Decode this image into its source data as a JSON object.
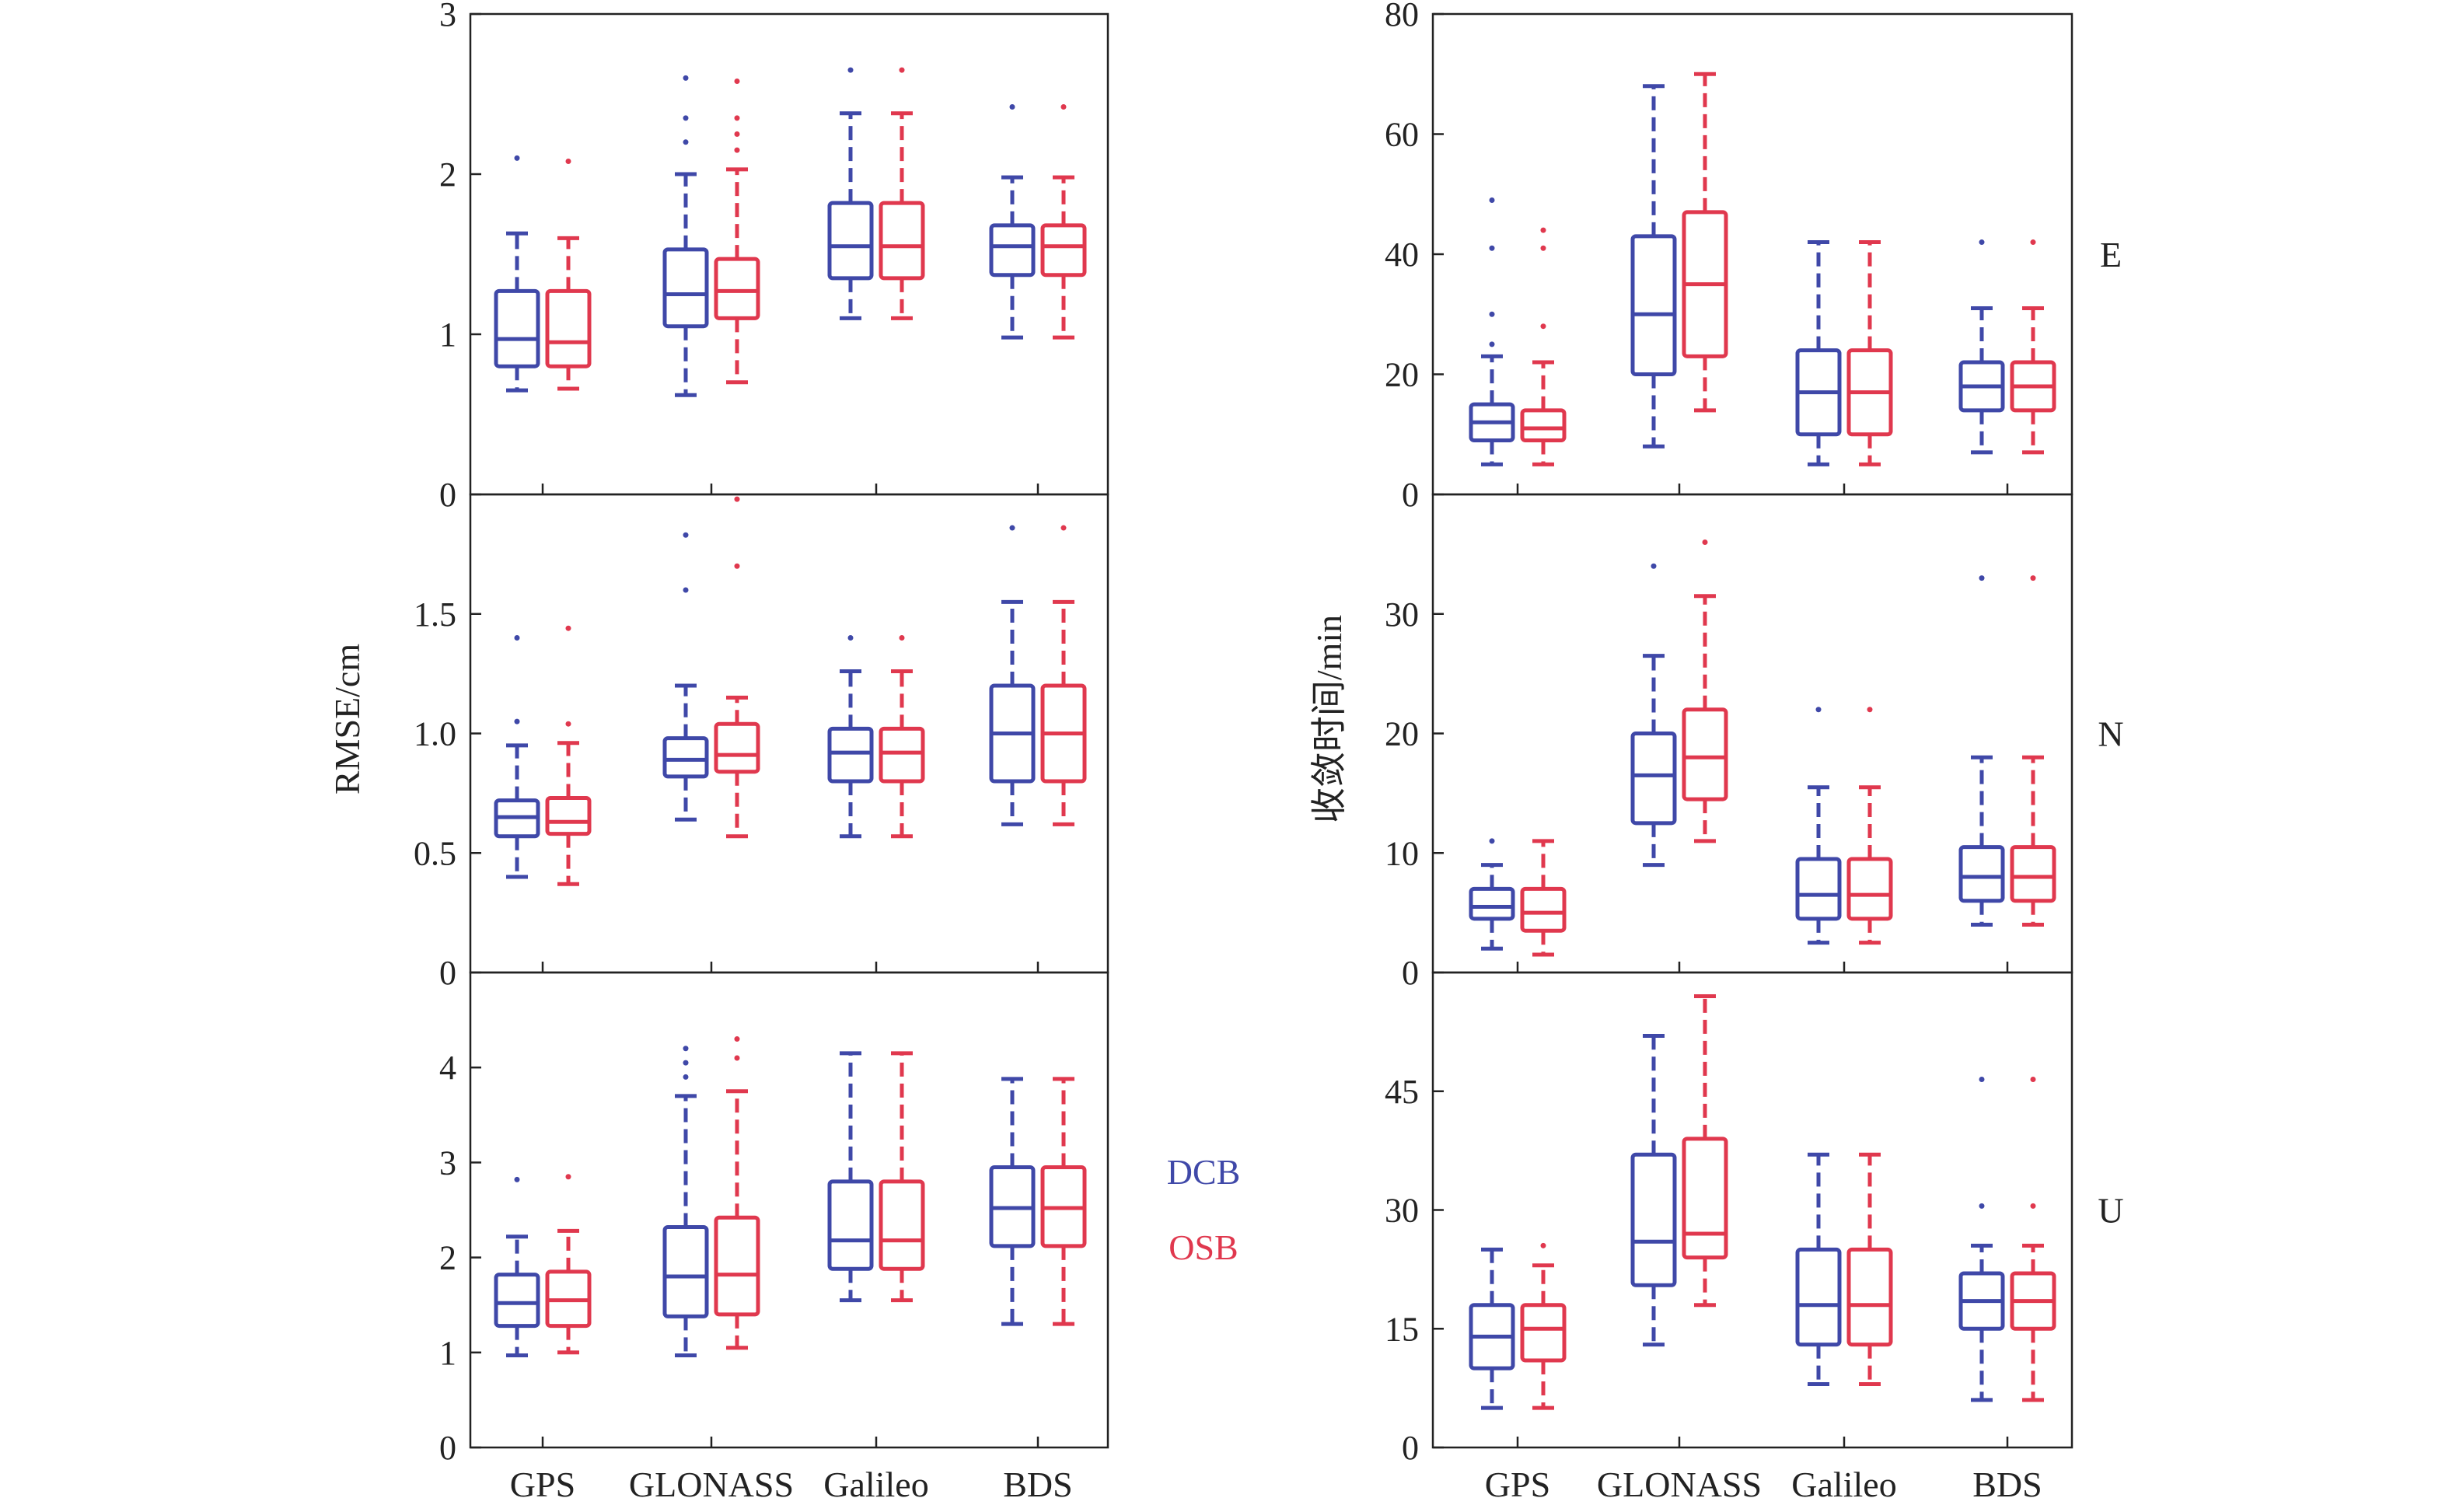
{
  "figure": {
    "legend": [
      {
        "label": "DCB",
        "color": "#3f48a8"
      },
      {
        "label": "OSB",
        "color": "#e0384e"
      }
    ]
  },
  "chart_data": [
    {
      "type": "box",
      "column": "left",
      "row": 1,
      "ylabel": "RMSE/cm",
      "ylim": [
        0,
        3
      ],
      "yticks": [
        0,
        1,
        2,
        3
      ],
      "ytick_labels": [
        "0",
        "1",
        "2",
        "3"
      ],
      "categories": [
        "GPS",
        "GLONASS",
        "Galileo",
        "BDS"
      ],
      "series": [
        {
          "name": "DCB",
          "boxes": [
            {
              "whislo": 0.65,
              "q1": 0.8,
              "med": 0.97,
              "q3": 1.27,
              "whishi": 1.63,
              "fliers": [
                2.1
              ]
            },
            {
              "whislo": 0.62,
              "q1": 1.05,
              "med": 1.25,
              "q3": 1.53,
              "whishi": 2.0,
              "fliers": [
                2.2,
                2.35,
                2.6
              ]
            },
            {
              "whislo": 1.1,
              "q1": 1.35,
              "med": 1.55,
              "q3": 1.82,
              "whishi": 2.38,
              "fliers": [
                2.65
              ]
            },
            {
              "whislo": 0.98,
              "q1": 1.37,
              "med": 1.55,
              "q3": 1.68,
              "whishi": 1.98,
              "fliers": [
                2.42
              ]
            }
          ]
        },
        {
          "name": "OSB",
          "boxes": [
            {
              "whislo": 0.66,
              "q1": 0.8,
              "med": 0.95,
              "q3": 1.27,
              "whishi": 1.6,
              "fliers": [
                2.08
              ]
            },
            {
              "whislo": 0.7,
              "q1": 1.1,
              "med": 1.27,
              "q3": 1.47,
              "whishi": 2.03,
              "fliers": [
                2.15,
                2.25,
                2.35,
                2.58
              ]
            },
            {
              "whislo": 1.1,
              "q1": 1.35,
              "med": 1.55,
              "q3": 1.82,
              "whishi": 2.38,
              "fliers": [
                2.65
              ]
            },
            {
              "whislo": 0.98,
              "q1": 1.37,
              "med": 1.55,
              "q3": 1.68,
              "whishi": 1.98,
              "fliers": [
                2.42
              ]
            }
          ]
        }
      ]
    },
    {
      "type": "box",
      "column": "left",
      "row": 2,
      "ylabel": "RMSE/cm",
      "ylim": [
        0,
        2
      ],
      "yticks": [
        0,
        0.5,
        1.0,
        1.5
      ],
      "ytick_labels": [
        "0",
        "0.5",
        "1.0",
        "1.5"
      ],
      "categories": [
        "GPS",
        "GLONASS",
        "Galileo",
        "BDS"
      ],
      "series": [
        {
          "name": "DCB",
          "boxes": [
            {
              "whislo": 0.4,
              "q1": 0.57,
              "med": 0.65,
              "q3": 0.72,
              "whishi": 0.95,
              "fliers": [
                1.05,
                1.4
              ]
            },
            {
              "whislo": 0.64,
              "q1": 0.82,
              "med": 0.89,
              "q3": 0.98,
              "whishi": 1.2,
              "fliers": [
                1.6,
                1.83
              ]
            },
            {
              "whislo": 0.57,
              "q1": 0.8,
              "med": 0.92,
              "q3": 1.02,
              "whishi": 1.26,
              "fliers": [
                1.4
              ]
            },
            {
              "whislo": 0.62,
              "q1": 0.8,
              "med": 1.0,
              "q3": 1.2,
              "whishi": 1.55,
              "fliers": [
                1.86
              ]
            }
          ]
        },
        {
          "name": "OSB",
          "boxes": [
            {
              "whislo": 0.37,
              "q1": 0.58,
              "med": 0.63,
              "q3": 0.73,
              "whishi": 0.96,
              "fliers": [
                1.04,
                1.44
              ]
            },
            {
              "whislo": 0.57,
              "q1": 0.84,
              "med": 0.91,
              "q3": 1.04,
              "whishi": 1.15,
              "fliers": [
                1.7,
                1.98
              ]
            },
            {
              "whislo": 0.57,
              "q1": 0.8,
              "med": 0.92,
              "q3": 1.02,
              "whishi": 1.26,
              "fliers": [
                1.4
              ]
            },
            {
              "whislo": 0.62,
              "q1": 0.8,
              "med": 1.0,
              "q3": 1.2,
              "whishi": 1.55,
              "fliers": [
                1.86
              ]
            }
          ]
        }
      ]
    },
    {
      "type": "box",
      "column": "left",
      "row": 3,
      "ylabel": "RMSE/cm",
      "ylim": [
        0,
        5
      ],
      "yticks": [
        0,
        1,
        2,
        3,
        4
      ],
      "ytick_labels": [
        "0",
        "1",
        "2",
        "3",
        "4"
      ],
      "categories": [
        "GPS",
        "GLONASS",
        "Galileo",
        "BDS"
      ],
      "series": [
        {
          "name": "DCB",
          "boxes": [
            {
              "whislo": 0.97,
              "q1": 1.28,
              "med": 1.52,
              "q3": 1.82,
              "whishi": 2.22,
              "fliers": [
                2.82
              ]
            },
            {
              "whislo": 0.97,
              "q1": 1.38,
              "med": 1.8,
              "q3": 2.32,
              "whishi": 3.7,
              "fliers": [
                3.9,
                4.05,
                4.2
              ]
            },
            {
              "whislo": 1.55,
              "q1": 1.88,
              "med": 2.18,
              "q3": 2.8,
              "whishi": 4.15,
              "fliers": []
            },
            {
              "whislo": 1.3,
              "q1": 2.12,
              "med": 2.52,
              "q3": 2.95,
              "whishi": 3.88,
              "fliers": []
            }
          ]
        },
        {
          "name": "OSB",
          "boxes": [
            {
              "whislo": 1.0,
              "q1": 1.28,
              "med": 1.55,
              "q3": 1.85,
              "whishi": 2.28,
              "fliers": [
                2.85
              ]
            },
            {
              "whislo": 1.05,
              "q1": 1.4,
              "med": 1.82,
              "q3": 2.42,
              "whishi": 3.75,
              "fliers": [
                4.1,
                4.3
              ]
            },
            {
              "whislo": 1.55,
              "q1": 1.88,
              "med": 2.18,
              "q3": 2.8,
              "whishi": 4.15,
              "fliers": []
            },
            {
              "whislo": 1.3,
              "q1": 2.12,
              "med": 2.52,
              "q3": 2.95,
              "whishi": 3.88,
              "fliers": []
            }
          ]
        }
      ]
    },
    {
      "type": "box",
      "column": "right",
      "row": 1,
      "label": "E",
      "ylabel": "收敛时间/min",
      "ylim": [
        0,
        80
      ],
      "yticks": [
        0,
        20,
        40,
        60,
        80
      ],
      "ytick_labels": [
        "0",
        "20",
        "40",
        "60",
        "80"
      ],
      "categories": [
        "GPS",
        "GLONASS",
        "Galileo",
        "BDS"
      ],
      "series": [
        {
          "name": "DCB",
          "boxes": [
            {
              "whislo": 5,
              "q1": 9,
              "med": 12,
              "q3": 15,
              "whishi": 23,
              "fliers": [
                25,
                30,
                41,
                49
              ]
            },
            {
              "whislo": 8,
              "q1": 20,
              "med": 30,
              "q3": 43,
              "whishi": 68,
              "fliers": []
            },
            {
              "whislo": 5,
              "q1": 10,
              "med": 17,
              "q3": 24,
              "whishi": 42,
              "fliers": []
            },
            {
              "whislo": 7,
              "q1": 14,
              "med": 18,
              "q3": 22,
              "whishi": 31,
              "fliers": [
                42
              ]
            }
          ]
        },
        {
          "name": "OSB",
          "boxes": [
            {
              "whislo": 5,
              "q1": 9,
              "med": 11,
              "q3": 14,
              "whishi": 22,
              "fliers": [
                28,
                41,
                44
              ]
            },
            {
              "whislo": 14,
              "q1": 23,
              "med": 35,
              "q3": 47,
              "whishi": 70,
              "fliers": []
            },
            {
              "whislo": 5,
              "q1": 10,
              "med": 17,
              "q3": 24,
              "whishi": 42,
              "fliers": []
            },
            {
              "whislo": 7,
              "q1": 14,
              "med": 18,
              "q3": 22,
              "whishi": 31,
              "fliers": [
                42
              ]
            }
          ]
        }
      ]
    },
    {
      "type": "box",
      "column": "right",
      "row": 2,
      "label": "N",
      "ylabel": "收敛时间/min",
      "ylim": [
        0,
        40
      ],
      "yticks": [
        0,
        10,
        20,
        30
      ],
      "ytick_labels": [
        "0",
        "10",
        "20",
        "30"
      ],
      "categories": [
        "GPS",
        "GLONASS",
        "Galileo",
        "BDS"
      ],
      "series": [
        {
          "name": "DCB",
          "boxes": [
            {
              "whislo": 2,
              "q1": 4.5,
              "med": 5.5,
              "q3": 7,
              "whishi": 9,
              "fliers": [
                11
              ]
            },
            {
              "whislo": 9,
              "q1": 12.5,
              "med": 16.5,
              "q3": 20,
              "whishi": 26.5,
              "fliers": [
                34
              ]
            },
            {
              "whislo": 2.5,
              "q1": 4.5,
              "med": 6.5,
              "q3": 9.5,
              "whishi": 15.5,
              "fliers": [
                22
              ]
            },
            {
              "whislo": 4,
              "q1": 6,
              "med": 8,
              "q3": 10.5,
              "whishi": 18,
              "fliers": [
                33
              ]
            }
          ]
        },
        {
          "name": "OSB",
          "boxes": [
            {
              "whislo": 1.5,
              "q1": 3.5,
              "med": 5,
              "q3": 7,
              "whishi": 11,
              "fliers": []
            },
            {
              "whislo": 11,
              "q1": 14.5,
              "med": 18,
              "q3": 22,
              "whishi": 31.5,
              "fliers": [
                36
              ]
            },
            {
              "whislo": 2.5,
              "q1": 4.5,
              "med": 6.5,
              "q3": 9.5,
              "whishi": 15.5,
              "fliers": [
                22
              ]
            },
            {
              "whislo": 4,
              "q1": 6,
              "med": 8,
              "q3": 10.5,
              "whishi": 18,
              "fliers": [
                33
              ]
            }
          ]
        }
      ]
    },
    {
      "type": "box",
      "column": "right",
      "row": 3,
      "label": "U",
      "ylabel": "收敛时间/min",
      "ylim": [
        0,
        60
      ],
      "yticks": [
        0,
        15,
        30,
        45
      ],
      "ytick_labels": [
        "0",
        "15",
        "30",
        "45"
      ],
      "categories": [
        "GPS",
        "GLONASS",
        "Galileo",
        "BDS"
      ],
      "series": [
        {
          "name": "DCB",
          "boxes": [
            {
              "whislo": 5,
              "q1": 10,
              "med": 14,
              "q3": 18,
              "whishi": 25,
              "fliers": []
            },
            {
              "whislo": 13,
              "q1": 20.5,
              "med": 26,
              "q3": 37,
              "whishi": 52,
              "fliers": []
            },
            {
              "whislo": 8,
              "q1": 13,
              "med": 18,
              "q3": 25,
              "whishi": 37,
              "fliers": []
            },
            {
              "whislo": 6,
              "q1": 15,
              "med": 18.5,
              "q3": 22,
              "whishi": 25.5,
              "fliers": [
                30.5,
                46.5
              ]
            }
          ]
        },
        {
          "name": "OSB",
          "boxes": [
            {
              "whislo": 5,
              "q1": 11,
              "med": 15,
              "q3": 18,
              "whishi": 23,
              "fliers": [
                25.5
              ]
            },
            {
              "whislo": 18,
              "q1": 24,
              "med": 27,
              "q3": 39,
              "whishi": 57,
              "fliers": []
            },
            {
              "whislo": 8,
              "q1": 13,
              "med": 18,
              "q3": 25,
              "whishi": 37,
              "fliers": []
            },
            {
              "whislo": 6,
              "q1": 15,
              "med": 18.5,
              "q3": 22,
              "whishi": 25.5,
              "fliers": [
                30.5,
                46.5
              ]
            }
          ]
        }
      ]
    }
  ]
}
